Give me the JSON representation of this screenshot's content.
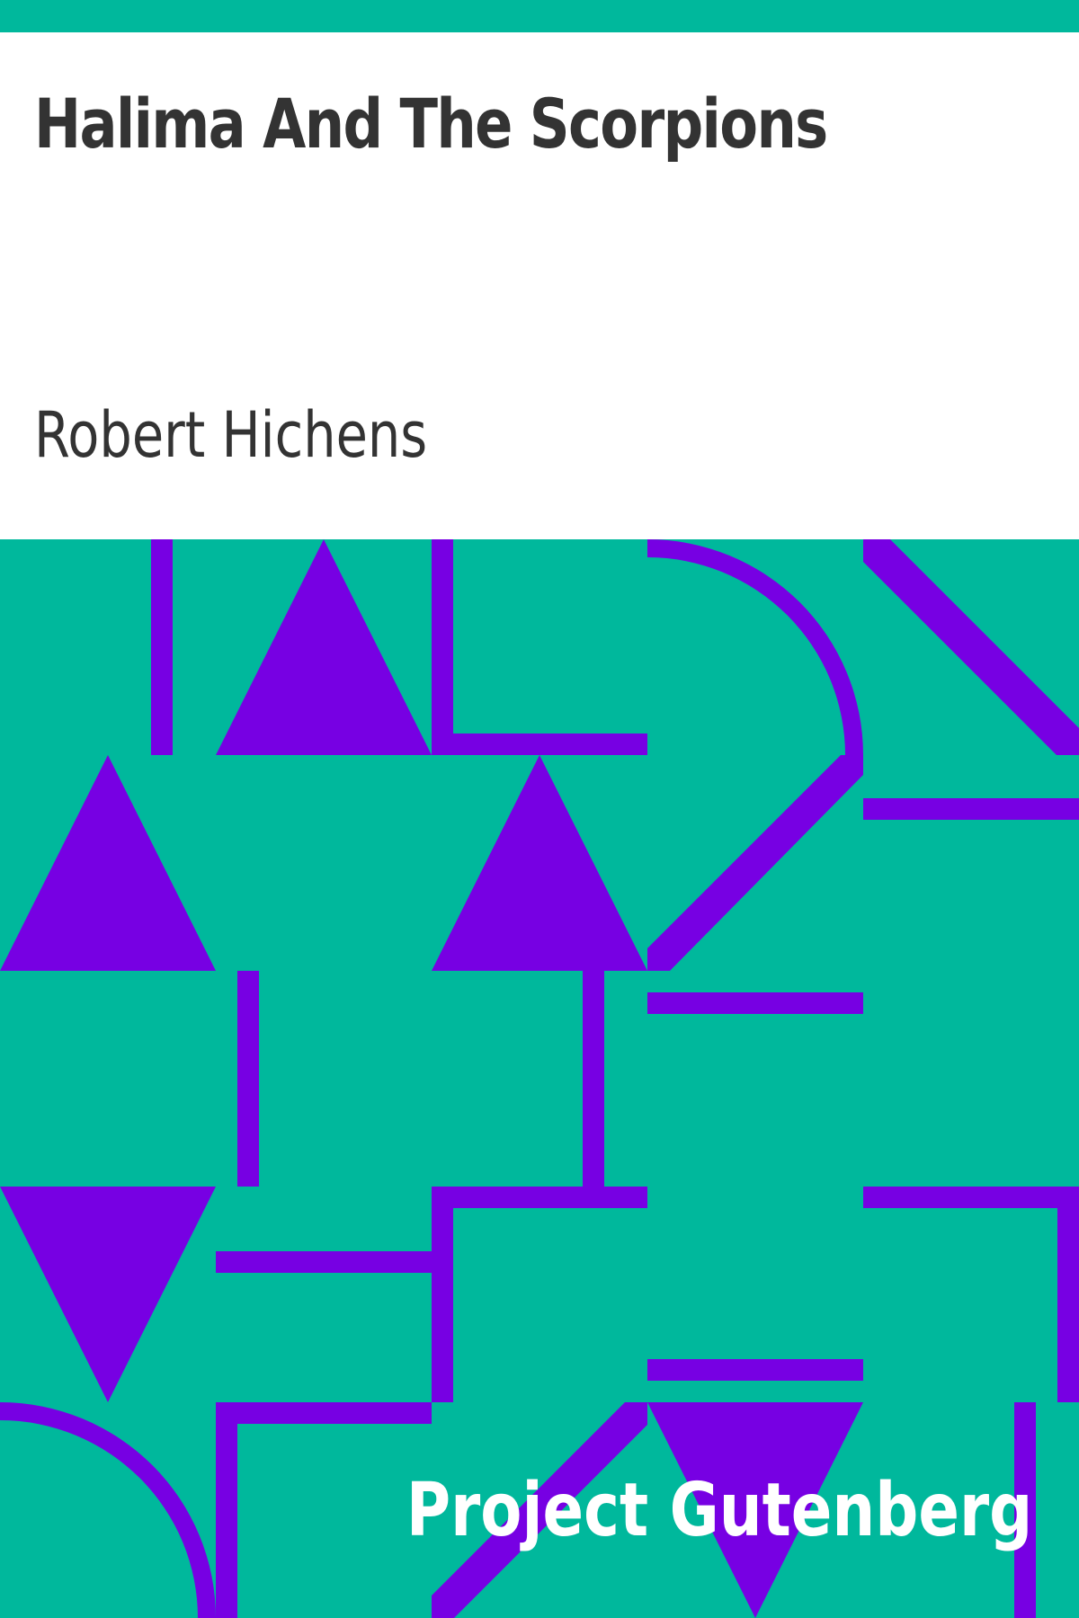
{
  "book": {
    "title": "Halima And The Scorpions",
    "author": "Robert Hichens",
    "publisher": "Project Gutenberg"
  },
  "colors": {
    "background_pattern": "#00b89c",
    "shapes": "#7700e3",
    "title_text": "#333333",
    "publisher_text": "#ffffff"
  }
}
